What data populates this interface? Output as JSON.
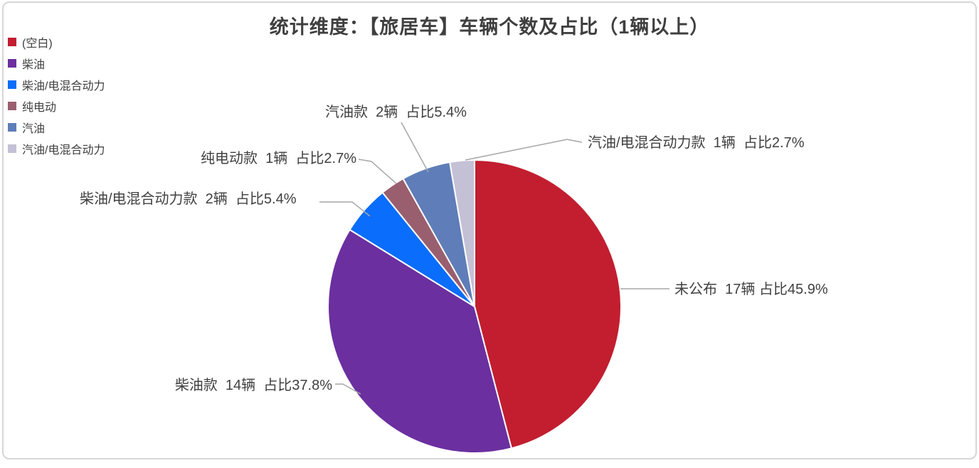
{
  "title": "统计维度：【旅居车】车辆个数及占比（1辆以上）",
  "colors": {
    "title_text": "#3f3f3f",
    "label_text": "#404040",
    "leader_line": "#a6a6a6",
    "card_border": "#d6d6d6",
    "slice_stroke": "#ffffff"
  },
  "chart_data": {
    "type": "pie",
    "title": "统计维度：【旅居车】车辆个数及占比（1辆以上）",
    "total_value": 37,
    "unit": "辆",
    "legend_position": "top-left",
    "start_angle_deg": 0,
    "direction": "clockwise",
    "slices": [
      {
        "legend_label": "(空白)",
        "name": "未公布",
        "value": 17,
        "percent": 45.9,
        "data_label": "未公布  17辆 占比45.9%",
        "color": "#c21e30"
      },
      {
        "legend_label": "柴油",
        "name": "柴油款",
        "value": 14,
        "percent": 37.8,
        "data_label": "柴油款  14辆  占比37.8%",
        "color": "#6b2fa0"
      },
      {
        "legend_label": "柴油/电混合动力",
        "name": "柴油/电混合动力款",
        "value": 2,
        "percent": 5.4,
        "data_label": "柴油/电混合动力款  2辆  占比5.4%",
        "color": "#0a6dfb"
      },
      {
        "legend_label": "纯电动",
        "name": "纯电动款",
        "value": 1,
        "percent": 2.7,
        "data_label": "纯电动款  1辆  占比2.7%",
        "color": "#9a5f6f"
      },
      {
        "legend_label": "汽油",
        "name": "汽油款",
        "value": 2,
        "percent": 5.4,
        "data_label": "汽油款  2辆  占比5.4%",
        "color": "#5f7db8"
      },
      {
        "legend_label": "汽油/电混合动力",
        "name": "汽油/电混合动力款",
        "value": 1,
        "percent": 2.7,
        "data_label": "汽油/电混合动力款  1辆  占比2.7%",
        "color": "#c4c1d6"
      }
    ]
  }
}
